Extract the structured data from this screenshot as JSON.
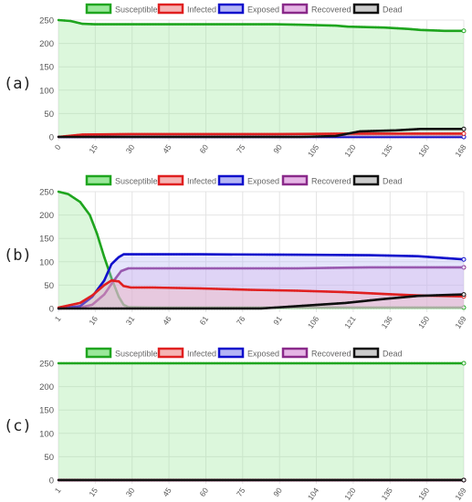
{
  "legend": [
    {
      "name": "Susceptible",
      "color": "#1fa51f",
      "fill": "#9be89b"
    },
    {
      "name": "Infected",
      "color": "#e02020",
      "fill": "#f5b5b5"
    },
    {
      "name": "Exposed",
      "color": "#1010cc",
      "fill": "#b5b5f5"
    },
    {
      "name": "Recovered",
      "color": "#8a2a8a",
      "fill": "#e6b5e6"
    },
    {
      "name": "Dead",
      "color": "#111111",
      "fill": "#cccccc"
    }
  ],
  "panel_labels": [
    "(a)",
    "(b)",
    "(c)"
  ],
  "chart_data": [
    {
      "type": "area",
      "panel": "(a)",
      "x_ticks": [
        "0",
        "15",
        "30",
        "45",
        "60",
        "75",
        "90",
        "105",
        "120",
        "135",
        "150",
        "168"
      ],
      "xlim": [
        0,
        168
      ],
      "ylim": [
        0,
        250
      ],
      "y_ticks": [
        "0",
        "50",
        "100",
        "150",
        "200",
        "250"
      ],
      "grid": true,
      "legend_position": "top",
      "series": [
        {
          "name": "Susceptible",
          "x": [
            0,
            5,
            10,
            15,
            30,
            60,
            90,
            100,
            115,
            120,
            135,
            145,
            150,
            160,
            168
          ],
          "y": [
            250,
            248,
            242,
            241,
            241,
            241,
            241,
            240,
            238,
            236,
            234,
            231,
            229,
            227,
            227
          ]
        },
        {
          "name": "Infected",
          "x": [
            0,
            10,
            30,
            60,
            90,
            120,
            150,
            168
          ],
          "y": [
            0,
            5,
            6,
            6,
            6,
            7,
            7,
            7
          ]
        },
        {
          "name": "Exposed",
          "x": [
            0,
            168
          ],
          "y": [
            0,
            0
          ]
        },
        {
          "name": "Recovered",
          "x": [
            0,
            168
          ],
          "y": [
            0,
            0
          ]
        },
        {
          "name": "Dead",
          "x": [
            0,
            100,
            115,
            120,
            125,
            140,
            150,
            168
          ],
          "y": [
            0,
            0,
            2,
            7,
            12,
            14,
            17,
            17
          ]
        }
      ]
    },
    {
      "type": "area",
      "panel": "(b)",
      "x_ticks": [
        "1",
        "16",
        "31",
        "46",
        "61",
        "76",
        "91",
        "106",
        "121",
        "136",
        "150",
        "169"
      ],
      "xlim": [
        1,
        169
      ],
      "ylim": [
        0,
        250
      ],
      "y_ticks": [
        "0",
        "50",
        "100",
        "150",
        "200",
        "250"
      ],
      "grid": true,
      "legend_position": "top",
      "series": [
        {
          "name": "Susceptible",
          "x": [
            1,
            5,
            10,
            14,
            17,
            20,
            23,
            26,
            28,
            30,
            40,
            169
          ],
          "y": [
            250,
            245,
            228,
            200,
            160,
            110,
            65,
            25,
            8,
            3,
            2,
            2
          ]
        },
        {
          "name": "Infected",
          "x": [
            1,
            10,
            15,
            20,
            23,
            26,
            28,
            31,
            40,
            60,
            80,
            100,
            120,
            140,
            150,
            169
          ],
          "y": [
            2,
            12,
            28,
            50,
            60,
            58,
            48,
            45,
            45,
            43,
            40,
            38,
            35,
            30,
            28,
            26
          ]
        },
        {
          "name": "Exposed",
          "x": [
            1,
            10,
            15,
            20,
            23,
            26,
            28,
            31,
            60,
            100,
            130,
            150,
            169
          ],
          "y": [
            0,
            5,
            25,
            60,
            95,
            110,
            116,
            116,
            116,
            115,
            114,
            112,
            105
          ]
        },
        {
          "name": "Recovered",
          "x": [
            1,
            10,
            15,
            20,
            24,
            27,
            30,
            60,
            100,
            130,
            150,
            169
          ],
          "y": [
            0,
            2,
            8,
            30,
            60,
            80,
            86,
            86,
            86,
            88,
            88,
            88
          ]
        },
        {
          "name": "Dead",
          "x": [
            1,
            85,
            100,
            120,
            135,
            150,
            169
          ],
          "y": [
            0,
            0,
            5,
            12,
            20,
            27,
            30
          ]
        }
      ]
    },
    {
      "type": "area",
      "panel": "(c)",
      "x_ticks": [
        "1",
        "15",
        "30",
        "45",
        "60",
        "75",
        "90",
        "104",
        "120",
        "135",
        "150",
        "169"
      ],
      "xlim": [
        1,
        169
      ],
      "ylim": [
        0,
        250
      ],
      "y_ticks": [
        "0",
        "50",
        "100",
        "150",
        "200",
        "250"
      ],
      "grid": true,
      "legend_position": "top",
      "series": [
        {
          "name": "Susceptible",
          "x": [
            1,
            169
          ],
          "y": [
            250,
            250
          ]
        },
        {
          "name": "Infected",
          "x": [
            1,
            169
          ],
          "y": [
            0,
            0
          ]
        },
        {
          "name": "Exposed",
          "x": [
            1,
            169
          ],
          "y": [
            0,
            0
          ]
        },
        {
          "name": "Recovered",
          "x": [
            1,
            169
          ],
          "y": [
            0,
            0
          ]
        },
        {
          "name": "Dead",
          "x": [
            1,
            169
          ],
          "y": [
            0,
            0
          ]
        }
      ]
    }
  ]
}
